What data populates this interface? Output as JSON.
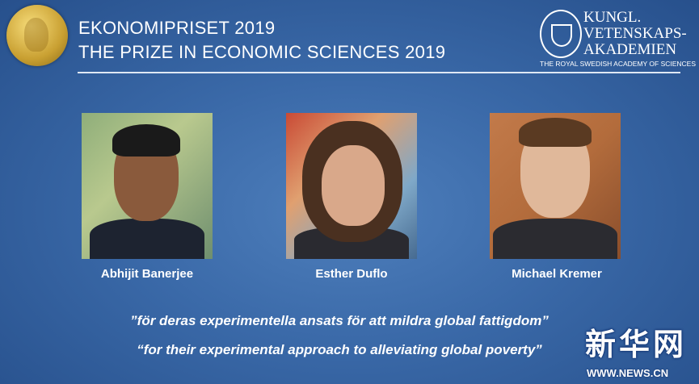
{
  "header": {
    "title_sv": "EKONOMIPRISET 2019",
    "title_en": "THE PRIZE IN ECONOMIC SCIENCES 2019",
    "academy_lines": [
      "KUNGL.",
      "VETENSKAPS-",
      "AKADEMIEN"
    ],
    "academy_en": "THE ROYAL SWEDISH ACADEMY OF SCIENCES"
  },
  "laureates": [
    {
      "name": "Abhijit Banerjee"
    },
    {
      "name": "Esther Duflo"
    },
    {
      "name": "Michael Kremer"
    }
  ],
  "citation": {
    "sv": "”för deras experimentella ansats för att mildra global fattigdom”",
    "en": "“for their experimental approach to alleviating global poverty”"
  },
  "watermark": {
    "chinese": "新华网",
    "url": "WWW.NEWS.CN"
  },
  "colors": {
    "background": "#3a69a8",
    "medal": "#d4ac3c"
  }
}
